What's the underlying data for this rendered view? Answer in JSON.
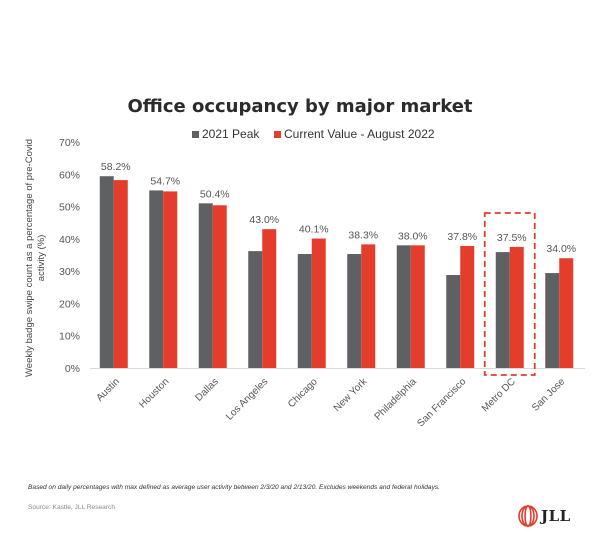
{
  "chart_data": {
    "type": "bar",
    "title": "Office occupancy by major market",
    "ylabel": "Weekly badge swipe count as a percentage of pre-Covid activity (%)",
    "xlabel": "",
    "ylim": [
      0,
      70
    ],
    "yticks": [
      0,
      10,
      20,
      30,
      40,
      50,
      60,
      70
    ],
    "ytick_labels": [
      "0%",
      "10%",
      "20%",
      "30%",
      "40%",
      "50%",
      "60%",
      "70%"
    ],
    "grid": false,
    "legend_position": "top-center",
    "categories": [
      "Austin",
      "Houston",
      "Dallas",
      "Los Angeles",
      "Chicago",
      "New York",
      "Philadelphia",
      "San Francisco",
      "Metro DC",
      "San Jose"
    ],
    "series": [
      {
        "name": "2021 Peak",
        "color": "#5f6064",
        "values": [
          59.4,
          55.0,
          51.0,
          36.2,
          35.3,
          35.3,
          38.0,
          28.8,
          35.9,
          29.4
        ]
      },
      {
        "name": "Current Value - August 2022",
        "color": "#e53d2b",
        "values": [
          58.2,
          54.7,
          50.4,
          43.0,
          40.1,
          38.3,
          38.0,
          37.8,
          37.5,
          34.0
        ],
        "data_labels": [
          "58.2%",
          "54.7%",
          "50.4%",
          "43.0%",
          "40.1%",
          "38.3%",
          "38.0%",
          "37.8%",
          "37.5%",
          "34.0%"
        ]
      }
    ],
    "highlight": {
      "category": "Metro DC",
      "style": "dashed-box",
      "color": "#e53d2b"
    }
  },
  "footnote": "Based on daily percentages with max defined as average user activity between 2/3/20 and 2/13/20. Excludes weekends and federal holidays.",
  "source": "Source: Kastle, JLL Research",
  "logo": {
    "text": "JLL",
    "icon": "jll-logo-icon",
    "color": "#e53d2b"
  }
}
